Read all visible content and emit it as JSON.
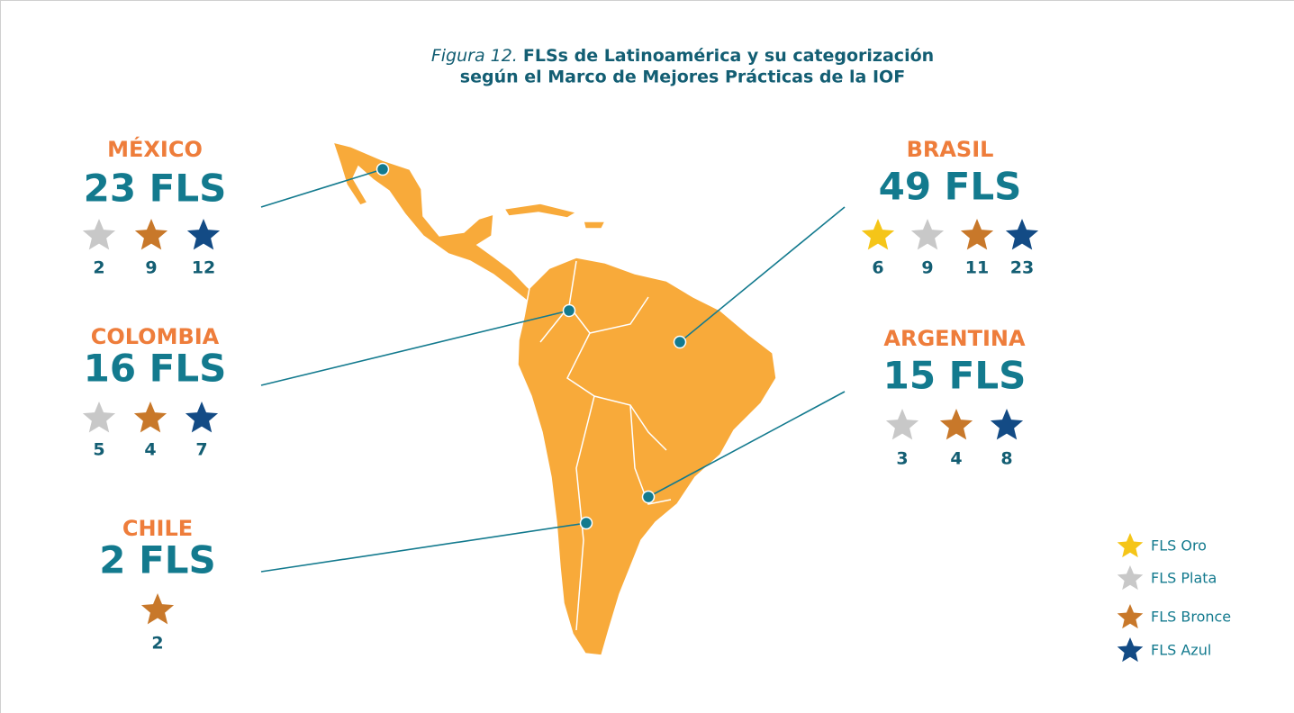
{
  "title": {
    "prefix": "Figura 12.",
    "line1": "FLSs de Latinoamérica y su categorización",
    "line2": "según el Marco de Mejores Prácticas de la IOF"
  },
  "countries": [
    {
      "name": "MÉXICO",
      "total": "23 FLS",
      "stars": [
        {
          "color": "#c8c8c8",
          "count": 2
        },
        {
          "color": "#c8782a",
          "count": 9
        },
        {
          "color": "#134b85",
          "count": 12
        }
      ]
    },
    {
      "name": "COLOMBIA",
      "total": "16 FLS",
      "stars": [
        {
          "color": "#c8c8c8",
          "count": 5
        },
        {
          "color": "#c8782a",
          "count": 4
        },
        {
          "color": "#134b85",
          "count": 7
        }
      ]
    },
    {
      "name": "CHILE",
      "total": "2 FLS",
      "stars": [
        {
          "color": "#c8782a",
          "count": 2
        }
      ]
    },
    {
      "name": "BRASIL",
      "total": "49 FLS",
      "stars": [
        {
          "color": "#f5c518",
          "count": 6
        },
        {
          "color": "#c8c8c8",
          "count": 9
        },
        {
          "color": "#c8782a",
          "count": 11
        },
        {
          "color": "#134b85",
          "count": 23
        }
      ]
    },
    {
      "name": "ARGENTINA",
      "total": "15 FLS",
      "stars": [
        {
          "color": "#c8c8c8",
          "count": 3
        },
        {
          "color": "#c8782a",
          "count": 4
        },
        {
          "color": "#134b85",
          "count": 8
        }
      ]
    }
  ],
  "legend": [
    {
      "label": "FLS Oro",
      "color": "#f5c518"
    },
    {
      "label": "FLS Plata",
      "color": "#c8c8c8"
    },
    {
      "label": "FLS Bronce",
      "color": "#c8782a"
    },
    {
      "label": "FLS Azul",
      "color": "#134b85"
    }
  ]
}
